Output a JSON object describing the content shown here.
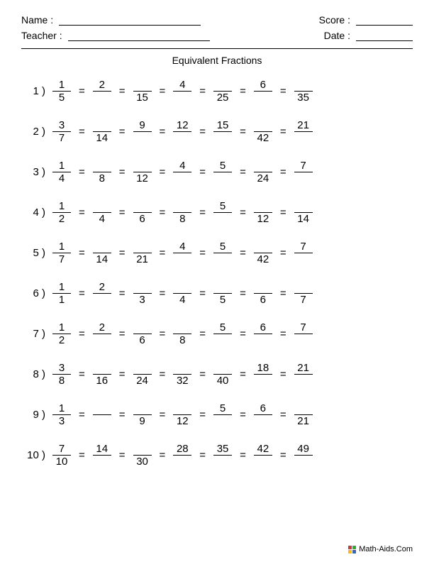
{
  "header": {
    "name_label": "Name :",
    "teacher_label": "Teacher :",
    "score_label": "Score :",
    "date_label": "Date :"
  },
  "title": "Equivalent Fractions",
  "footer": "Math-Aids.Com",
  "problems": [
    {
      "n": "1 )",
      "fracs": [
        {
          "num": "1",
          "den": "5"
        },
        {
          "num": "2",
          "den": ""
        },
        {
          "num": "",
          "den": "15"
        },
        {
          "num": "4",
          "den": ""
        },
        {
          "num": "",
          "den": "25"
        },
        {
          "num": "6",
          "den": ""
        },
        {
          "num": "",
          "den": "35"
        }
      ]
    },
    {
      "n": "2 )",
      "fracs": [
        {
          "num": "3",
          "den": "7"
        },
        {
          "num": "",
          "den": "14"
        },
        {
          "num": "9",
          "den": ""
        },
        {
          "num": "12",
          "den": ""
        },
        {
          "num": "15",
          "den": ""
        },
        {
          "num": "",
          "den": "42"
        },
        {
          "num": "21",
          "den": ""
        }
      ]
    },
    {
      "n": "3 )",
      "fracs": [
        {
          "num": "1",
          "den": "4"
        },
        {
          "num": "",
          "den": "8"
        },
        {
          "num": "",
          "den": "12"
        },
        {
          "num": "4",
          "den": ""
        },
        {
          "num": "5",
          "den": ""
        },
        {
          "num": "",
          "den": "24"
        },
        {
          "num": "7",
          "den": ""
        }
      ]
    },
    {
      "n": "4 )",
      "fracs": [
        {
          "num": "1",
          "den": "2"
        },
        {
          "num": "",
          "den": "4"
        },
        {
          "num": "",
          "den": "6"
        },
        {
          "num": "",
          "den": "8"
        },
        {
          "num": "5",
          "den": ""
        },
        {
          "num": "",
          "den": "12"
        },
        {
          "num": "",
          "den": "14"
        }
      ]
    },
    {
      "n": "5 )",
      "fracs": [
        {
          "num": "1",
          "den": "7"
        },
        {
          "num": "",
          "den": "14"
        },
        {
          "num": "",
          "den": "21"
        },
        {
          "num": "4",
          "den": ""
        },
        {
          "num": "5",
          "den": ""
        },
        {
          "num": "",
          "den": "42"
        },
        {
          "num": "7",
          "den": ""
        }
      ]
    },
    {
      "n": "6 )",
      "fracs": [
        {
          "num": "1",
          "den": "1"
        },
        {
          "num": "2",
          "den": ""
        },
        {
          "num": "",
          "den": "3"
        },
        {
          "num": "",
          "den": "4"
        },
        {
          "num": "",
          "den": "5"
        },
        {
          "num": "",
          "den": "6"
        },
        {
          "num": "",
          "den": "7"
        }
      ]
    },
    {
      "n": "7 )",
      "fracs": [
        {
          "num": "1",
          "den": "2"
        },
        {
          "num": "2",
          "den": ""
        },
        {
          "num": "",
          "den": "6"
        },
        {
          "num": "",
          "den": "8"
        },
        {
          "num": "5",
          "den": ""
        },
        {
          "num": "6",
          "den": ""
        },
        {
          "num": "7",
          "den": ""
        }
      ]
    },
    {
      "n": "8 )",
      "fracs": [
        {
          "num": "3",
          "den": "8"
        },
        {
          "num": "",
          "den": "16"
        },
        {
          "num": "",
          "den": "24"
        },
        {
          "num": "",
          "den": "32"
        },
        {
          "num": "",
          "den": "40"
        },
        {
          "num": "18",
          "den": ""
        },
        {
          "num": "21",
          "den": ""
        }
      ]
    },
    {
      "n": "9 )",
      "fracs": [
        {
          "num": "1",
          "den": "3"
        },
        {
          "num": "",
          "den": ""
        },
        {
          "num": "",
          "den": "9"
        },
        {
          "num": "",
          "den": "12"
        },
        {
          "num": "5",
          "den": ""
        },
        {
          "num": "6",
          "den": ""
        },
        {
          "num": "",
          "den": "21"
        }
      ]
    },
    {
      "n": "10 )",
      "fracs": [
        {
          "num": "7",
          "den": "10"
        },
        {
          "num": "14",
          "den": ""
        },
        {
          "num": "",
          "den": "30"
        },
        {
          "num": "28",
          "den": ""
        },
        {
          "num": "35",
          "den": ""
        },
        {
          "num": "42",
          "den": ""
        },
        {
          "num": "49",
          "den": ""
        }
      ]
    }
  ]
}
